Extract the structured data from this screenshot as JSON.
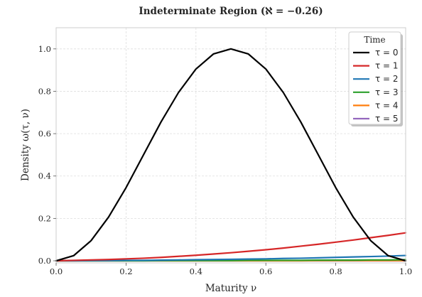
{
  "chart_data": {
    "type": "line",
    "title": "Indeterminate Region (ℵ = −0.26)",
    "xlabel": "Maturity ν",
    "ylabel": "Density ω(τ, ν)",
    "xlim": [
      0.0,
      1.0
    ],
    "ylim": [
      -0.01,
      1.1
    ],
    "xticks": [
      0.0,
      0.2,
      0.4,
      0.6,
      0.8,
      1.0
    ],
    "xtick_labels": [
      "0.0",
      "0.2",
      "0.4",
      "0.6",
      "0.8",
      "1.0"
    ],
    "yticks": [
      0.0,
      0.2,
      0.4,
      0.6,
      0.8,
      1.0
    ],
    "ytick_labels": [
      "0.0",
      "0.2",
      "0.4",
      "0.6",
      "0.8",
      "1.0"
    ],
    "grid": true,
    "legend": {
      "title": "Time",
      "placement": "top-right"
    },
    "x": [
      0.0,
      0.05,
      0.1,
      0.15,
      0.2,
      0.25,
      0.3,
      0.35,
      0.4,
      0.45,
      0.5,
      0.55,
      0.6,
      0.65,
      0.7,
      0.75,
      0.8,
      0.85,
      0.9,
      0.95,
      1.0
    ],
    "series": [
      {
        "name": "τ = 0",
        "color": "#000000",
        "values": [
          0.0,
          0.024,
          0.095,
          0.206,
          0.345,
          0.5,
          0.655,
          0.794,
          0.905,
          0.976,
          1.0,
          0.976,
          0.905,
          0.794,
          0.655,
          0.5,
          0.345,
          0.206,
          0.095,
          0.024,
          0.0
        ]
      },
      {
        "name": "τ = 1",
        "color": "#d62728",
        "values": [
          0.0,
          0.002,
          0.004,
          0.006,
          0.009,
          0.012,
          0.016,
          0.021,
          0.026,
          0.032,
          0.038,
          0.045,
          0.052,
          0.06,
          0.069,
          0.078,
          0.088,
          0.098,
          0.109,
          0.12,
          0.132
        ]
      },
      {
        "name": "τ = 2",
        "color": "#1f77b4",
        "values": [
          0.0,
          0.0,
          0.001,
          0.001,
          0.002,
          0.002,
          0.003,
          0.004,
          0.005,
          0.006,
          0.007,
          0.008,
          0.009,
          0.011,
          0.012,
          0.014,
          0.016,
          0.018,
          0.02,
          0.022,
          0.025
        ]
      },
      {
        "name": "τ = 3",
        "color": "#2ca02c",
        "values": [
          0.0,
          0.0,
          0.0,
          0.0,
          0.0,
          0.0,
          0.001,
          0.001,
          0.001,
          0.001,
          0.001,
          0.002,
          0.002,
          0.002,
          0.002,
          0.003,
          0.003,
          0.003,
          0.004,
          0.004,
          0.005
        ]
      },
      {
        "name": "τ = 4",
        "color": "#ff7f0e",
        "values": [
          0.0,
          0.0,
          0.0,
          0.0,
          0.0,
          0.0,
          0.0,
          0.0,
          0.0,
          0.0,
          0.0,
          0.0,
          0.0,
          0.0,
          0.0,
          0.001,
          0.001,
          0.001,
          0.001,
          0.001,
          0.001
        ]
      },
      {
        "name": "τ = 5",
        "color": "#9467bd",
        "values": [
          0.0,
          0.0,
          0.0,
          0.0,
          0.0,
          0.0,
          0.0,
          0.0,
          0.0,
          0.0,
          0.0,
          0.0,
          0.0,
          0.0,
          0.0,
          0.0,
          0.0,
          0.0,
          0.0,
          0.0,
          0.0
        ]
      }
    ]
  }
}
